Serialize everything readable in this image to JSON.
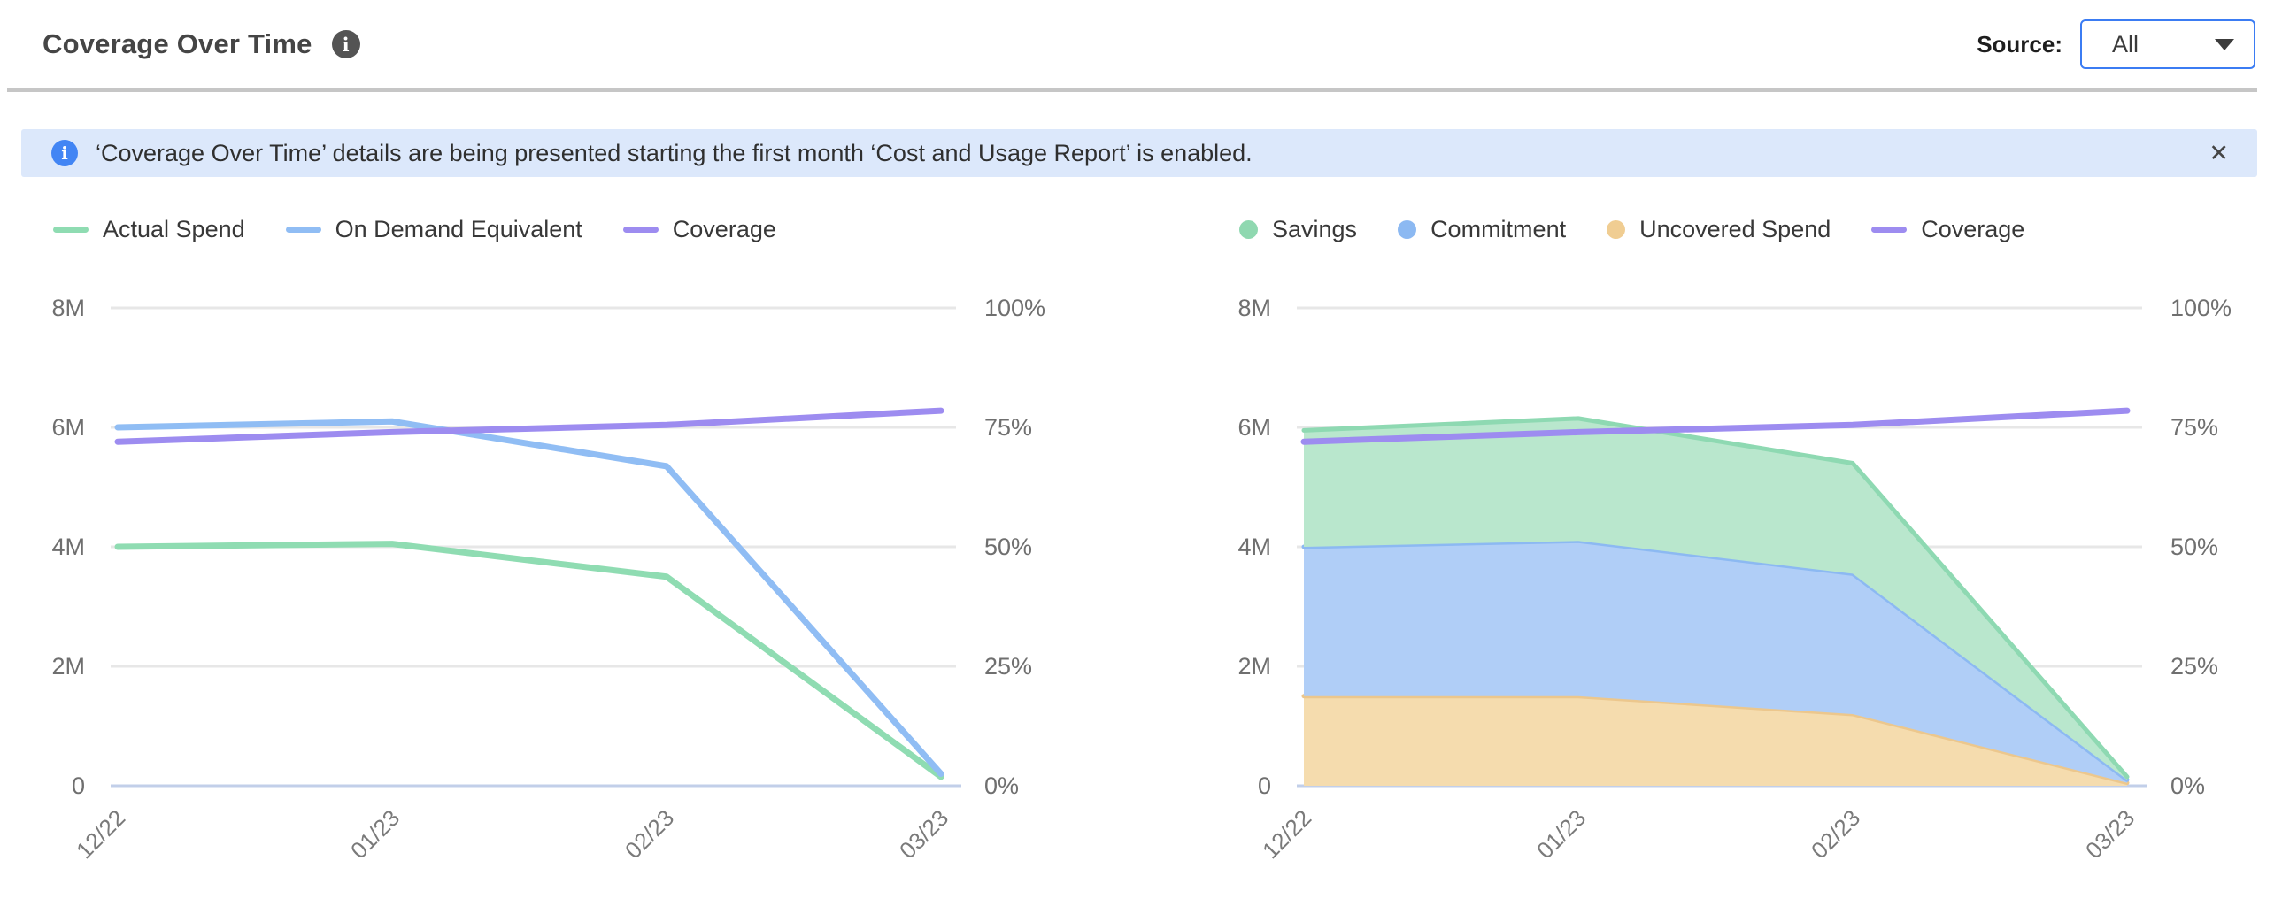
{
  "header": {
    "title": "Coverage Over Time",
    "info_icon": "i",
    "source_label": "Source:",
    "source_value": "All"
  },
  "banner": {
    "icon": "i",
    "text": "‘Coverage Over Time’ details are being presented starting the first month ‘Cost and Usage Report’ is enabled.",
    "close_icon": "✕"
  },
  "colors": {
    "accent_blue": "#4285f4",
    "banner_bg": "#dce8fb",
    "separator": "#c6c6c6",
    "grid": "#e7e7e7",
    "axis_text": "#6f6f6f",
    "x_axis_line": "#c2cfe9",
    "series_green": "#8fdcb2",
    "series_blue": "#90bdf4",
    "series_purple": "#9d8cf0",
    "series_orange": "#f0cd92"
  },
  "chart_data": [
    {
      "type": "line",
      "categories": [
        "12/22",
        "01/23",
        "02/23",
        "03/23"
      ],
      "left_axis": {
        "ticks": [
          "8M",
          "6M",
          "4M",
          "2M",
          "0"
        ],
        "max": 8,
        "unit": "M (millions)"
      },
      "right_axis": {
        "ticks": [
          "100%",
          "75%",
          "50%",
          "25%",
          "0%"
        ],
        "max": 100,
        "unit": "%"
      },
      "grid": true,
      "legend_position": "top-left",
      "series": [
        {
          "name": "Actual Spend",
          "kind": "line",
          "unit": "M",
          "color": "#8fdcb2",
          "values": [
            4.0,
            4.05,
            3.5,
            0.15
          ]
        },
        {
          "name": "On Demand Equivalent",
          "kind": "line",
          "unit": "M",
          "color": "#90bdf4",
          "values": [
            6.0,
            6.1,
            5.35,
            0.2
          ]
        },
        {
          "name": "Coverage",
          "kind": "line",
          "unit": "%",
          "color": "#9d8cf0",
          "values": [
            72,
            74,
            75.5,
            78.5
          ]
        }
      ],
      "legend": [
        {
          "label": "Actual Spend",
          "swatch": "line",
          "color": "#8fdcb2"
        },
        {
          "label": "On Demand Equivalent",
          "swatch": "line",
          "color": "#90bdf4"
        },
        {
          "label": "Coverage",
          "swatch": "line",
          "color": "#9d8cf0"
        }
      ]
    },
    {
      "type": "area",
      "stacked": true,
      "categories": [
        "12/22",
        "01/23",
        "02/23",
        "03/23"
      ],
      "left_axis": {
        "ticks": [
          "8M",
          "6M",
          "4M",
          "2M",
          "0"
        ],
        "max": 8,
        "unit": "M (millions)"
      },
      "right_axis": {
        "ticks": [
          "100%",
          "75%",
          "50%",
          "25%",
          "0%"
        ],
        "max": 100,
        "unit": "%"
      },
      "grid": true,
      "legend_position": "top-left",
      "series": [
        {
          "name": "Uncovered Spend",
          "kind": "area",
          "unit": "M",
          "fill": "#f5dcae",
          "edge": "#ecc78d",
          "values": [
            1.5,
            1.5,
            1.2,
            0.05
          ]
        },
        {
          "name": "Commitment",
          "kind": "area",
          "unit": "M",
          "fill": "#b0cef7",
          "edge": "#8cb9f2",
          "values": [
            2.5,
            2.6,
            2.35,
            0.05
          ]
        },
        {
          "name": "Savings",
          "kind": "area",
          "unit": "M",
          "fill": "#b9e7cd",
          "edge": "#8ed9b2",
          "values": [
            1.95,
            2.05,
            1.85,
            0.05
          ]
        },
        {
          "name": "Coverage",
          "kind": "line",
          "unit": "%",
          "color": "#9d8cf0",
          "values": [
            72,
            74,
            75.5,
            78.5
          ]
        }
      ],
      "legend": [
        {
          "label": "Savings",
          "swatch": "circle",
          "color": "#8fd8b0"
        },
        {
          "label": "Commitment",
          "swatch": "circle",
          "color": "#8cb9f2"
        },
        {
          "label": "Uncovered Spend",
          "swatch": "circle",
          "color": "#f0cd92"
        },
        {
          "label": "Coverage",
          "swatch": "line",
          "color": "#9d8cf0"
        }
      ]
    }
  ]
}
